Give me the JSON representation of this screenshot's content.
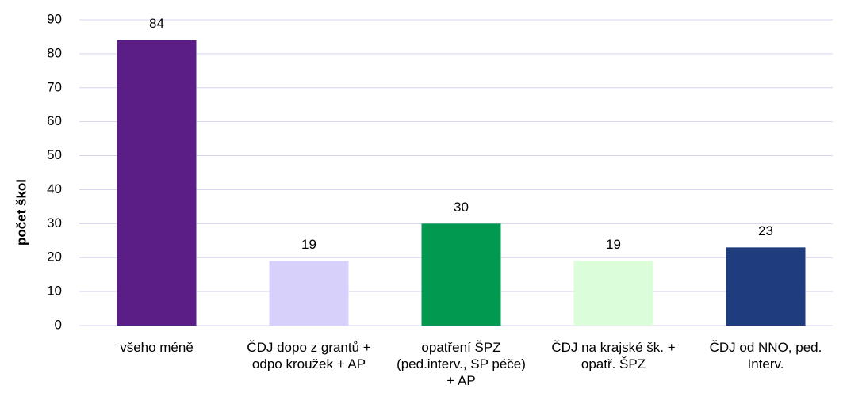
{
  "chart_data": {
    "type": "bar",
    "y_label": "počet škol",
    "categories": [
      "všeho méně",
      "ČDJ dopo z grantů + odpo kroužek + AP",
      "opatření ŠPZ (ped.interv., SP péče) + AP",
      "ČDJ na krajské šk. + opatř. ŠPZ",
      "ČDJ od NNO, ped. Interv."
    ],
    "values": [
      84,
      19,
      30,
      19,
      23
    ],
    "colors": [
      "#5b1e86",
      "#d6d0fb",
      "#00994f",
      "#dcfdd9",
      "#1f3d7e"
    ],
    "ylim": [
      0,
      90
    ],
    "yticks": [
      0,
      10,
      20,
      30,
      40,
      50,
      60,
      70,
      80,
      90
    ],
    "grid": true
  }
}
